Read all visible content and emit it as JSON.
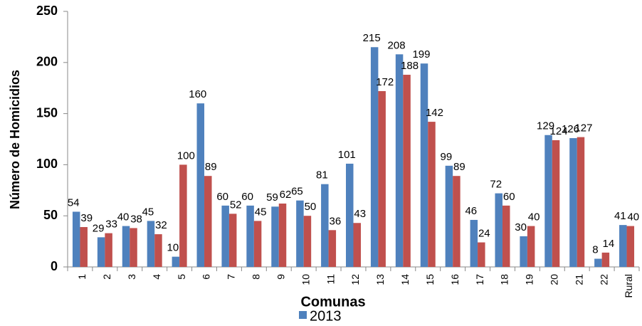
{
  "chart_data": {
    "type": "bar",
    "x_label": "Comunas",
    "y_label": "Número de Homicidios",
    "categories": [
      "1",
      "2",
      "3",
      "4",
      "5",
      "6",
      "7",
      "8",
      "9",
      "10",
      "11",
      "12",
      "13",
      "14",
      "15",
      "16",
      "17",
      "18",
      "19",
      "20",
      "21",
      "22",
      "Rural"
    ],
    "series": [
      {
        "name": "2013",
        "color": "#4f81bd",
        "values": [
          54,
          29,
          40,
          45,
          10,
          160,
          60,
          60,
          59,
          65,
          81,
          101,
          215,
          208,
          199,
          99,
          46,
          72,
          30,
          129,
          126,
          8,
          41
        ]
      },
      {
        "color": "#c0504d",
        "values": [
          39,
          33,
          38,
          32,
          100,
          89,
          52,
          45,
          62,
          50,
          36,
          43,
          172,
          188,
          142,
          89,
          24,
          60,
          40,
          124,
          127,
          14,
          40
        ]
      }
    ],
    "ylim": [
      0,
      250
    ],
    "yticks": [
      0,
      50,
      100,
      150,
      200,
      250
    ],
    "grid": false
  }
}
